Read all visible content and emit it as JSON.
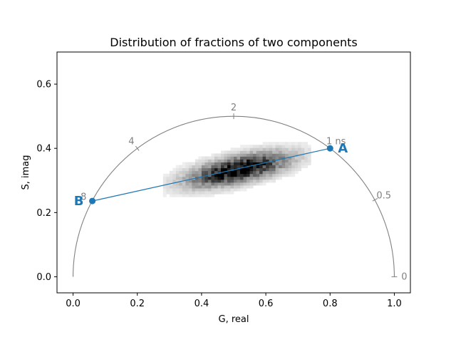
{
  "chart_data": {
    "type": "scatter",
    "title": "Distribution of fractions of two components",
    "xlabel": "G, real",
    "ylabel": "S, imag",
    "xlim": [
      -0.05,
      1.05
    ],
    "ylim": [
      -0.05,
      0.7
    ],
    "x_ticks": [
      0.0,
      0.2,
      0.4,
      0.6,
      0.8,
      1.0
    ],
    "x_tick_labels": [
      "0.0",
      "0.2",
      "0.4",
      "0.6",
      "0.8",
      "1.0"
    ],
    "y_ticks": [
      0.0,
      0.2,
      0.4,
      0.6
    ],
    "y_tick_labels": [
      "0.0",
      "0.2",
      "0.4",
      "0.6"
    ],
    "grid": false,
    "universal_semicircle": {
      "center": [
        0.5,
        0.0
      ],
      "radius": 0.5,
      "color": "#808080",
      "lifetime_ticks": [
        {
          "label": "0",
          "g": 1.0,
          "s": 0.0
        },
        {
          "label": "0.5",
          "g": 0.94,
          "s": 0.24
        },
        {
          "label": "1 ns",
          "g": 0.8,
          "s": 0.4
        },
        {
          "label": "2",
          "g": 0.5,
          "s": 0.5
        },
        {
          "label": "4",
          "g": 0.2,
          "s": 0.4
        },
        {
          "label": "8",
          "g": 0.06,
          "s": 0.236
        }
      ]
    },
    "components": [
      {
        "label": "A",
        "g": 0.8,
        "s": 0.4
      },
      {
        "label": "B",
        "g": 0.06,
        "s": 0.236
      }
    ],
    "component_line_color": "#1f77b4",
    "histogram": {
      "colormap": "gray_r",
      "center": [
        0.51,
        0.33
      ],
      "spread_along_line": 0.11,
      "spread_across_line": 0.028,
      "g_range": [
        0.28,
        0.74
      ],
      "s_range": [
        0.24,
        0.43
      ]
    }
  }
}
